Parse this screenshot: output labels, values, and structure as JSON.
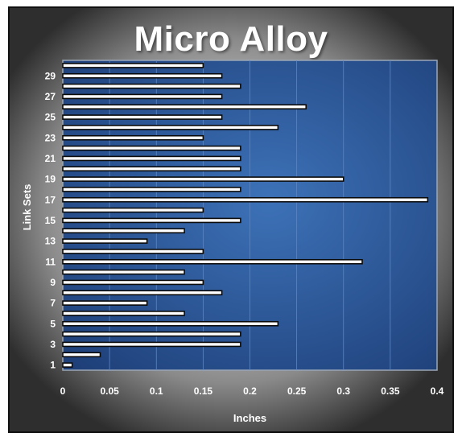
{
  "chart_data": {
    "type": "bar",
    "orientation": "horizontal",
    "title": "Micro Alloy",
    "xlabel": "Inches",
    "ylabel": "Link Sets",
    "xlim": [
      0,
      0.4
    ],
    "x_ticks": [
      "0",
      "0.05",
      "0.1",
      "0.15",
      "0.2",
      "0.25",
      "0.3",
      "0.35",
      "0.4"
    ],
    "y_ticks": [
      "1",
      "3",
      "5",
      "7",
      "9",
      "11",
      "13",
      "15",
      "17",
      "19",
      "21",
      "23",
      "25",
      "27",
      "29"
    ],
    "categories": [
      1,
      2,
      3,
      4,
      5,
      6,
      7,
      8,
      9,
      10,
      11,
      12,
      13,
      14,
      15,
      16,
      17,
      18,
      19,
      20,
      21,
      22,
      23,
      24,
      25,
      26,
      27,
      28,
      29,
      30
    ],
    "values": [
      0.01,
      0.04,
      0.19,
      0.19,
      0.23,
      0.13,
      0.09,
      0.17,
      0.15,
      0.13,
      0.32,
      0.15,
      0.09,
      0.13,
      0.19,
      0.15,
      0.39,
      0.19,
      0.3,
      0.19,
      0.19,
      0.19,
      0.15,
      0.23,
      0.17,
      0.26,
      0.17,
      0.19,
      0.17,
      0.15
    ],
    "grid": true,
    "legend": "none",
    "colors": {
      "plot_bg_inner": "#3d72b8",
      "plot_bg_outer": "#1e3f78",
      "bar_fill": "#ffffff",
      "bar_stroke": "#0b0b0b",
      "grid": "#5c86c4"
    }
  }
}
